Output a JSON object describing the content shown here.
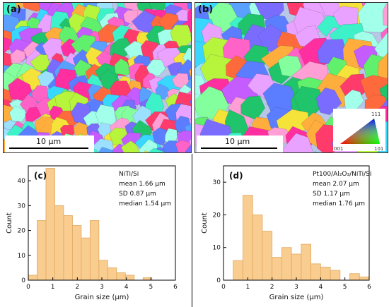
{
  "figure": {
    "panels": [
      {
        "label": "(a)",
        "scale": "10 μm"
      },
      {
        "label": "(b)",
        "scale": "10 μm"
      }
    ],
    "ipf_key": {
      "corner_top": "111",
      "corner_left": "001",
      "corner_right": "101"
    }
  },
  "chart_data": [
    {
      "type": "bar",
      "panel_label": "(c)",
      "annotation": [
        "NiTi/Si",
        "mean 1.66 μm",
        "SD 0.87 μm",
        "median 1.54 μm"
      ],
      "xlabel": "Grain size (μm)",
      "ylabel": "Count",
      "xlim": [
        0,
        6
      ],
      "ylim": [
        0,
        46
      ],
      "xticks": [
        0,
        1,
        2,
        3,
        4,
        5,
        6
      ],
      "yticks": [
        0,
        10,
        20,
        30,
        40
      ],
      "bin_width": 0.36,
      "bins": [
        {
          "x0": 0.0,
          "value": 2
        },
        {
          "x0": 0.36,
          "value": 24
        },
        {
          "x0": 0.72,
          "value": 45
        },
        {
          "x0": 1.08,
          "value": 30
        },
        {
          "x0": 1.44,
          "value": 26
        },
        {
          "x0": 1.8,
          "value": 22
        },
        {
          "x0": 2.16,
          "value": 17
        },
        {
          "x0": 2.52,
          "value": 24
        },
        {
          "x0": 2.88,
          "value": 8
        },
        {
          "x0": 3.24,
          "value": 5
        },
        {
          "x0": 3.6,
          "value": 3
        },
        {
          "x0": 3.96,
          "value": 2
        },
        {
          "x0": 4.32,
          "value": 0
        },
        {
          "x0": 4.68,
          "value": 1
        }
      ],
      "bar_color": "#f9cc8f"
    },
    {
      "type": "bar",
      "panel_label": "(d)",
      "annotation": [
        "Pt100/Al₂O₃/NiTi/Si",
        "mean 2.07 μm",
        "SD 1.17 μm",
        "median 1.76 μm"
      ],
      "xlabel": "Grain size (μm)",
      "ylabel": "Count",
      "xlim": [
        0,
        6
      ],
      "ylim": [
        0,
        35
      ],
      "xticks": [
        0,
        1,
        2,
        3,
        4,
        5,
        6
      ],
      "yticks": [
        0,
        10,
        20,
        30
      ],
      "bin_width": 0.4,
      "bins": [
        {
          "x0": 0.4,
          "value": 6
        },
        {
          "x0": 0.8,
          "value": 26
        },
        {
          "x0": 1.2,
          "value": 20
        },
        {
          "x0": 1.6,
          "value": 15
        },
        {
          "x0": 2.0,
          "value": 7
        },
        {
          "x0": 2.4,
          "value": 10
        },
        {
          "x0": 2.8,
          "value": 8
        },
        {
          "x0": 3.2,
          "value": 11
        },
        {
          "x0": 3.6,
          "value": 5
        },
        {
          "x0": 4.0,
          "value": 4
        },
        {
          "x0": 4.4,
          "value": 3
        },
        {
          "x0": 4.8,
          "value": 0
        },
        {
          "x0": 5.2,
          "value": 2
        },
        {
          "x0": 5.6,
          "value": 1
        }
      ],
      "bar_color": "#f9cc8f"
    }
  ]
}
